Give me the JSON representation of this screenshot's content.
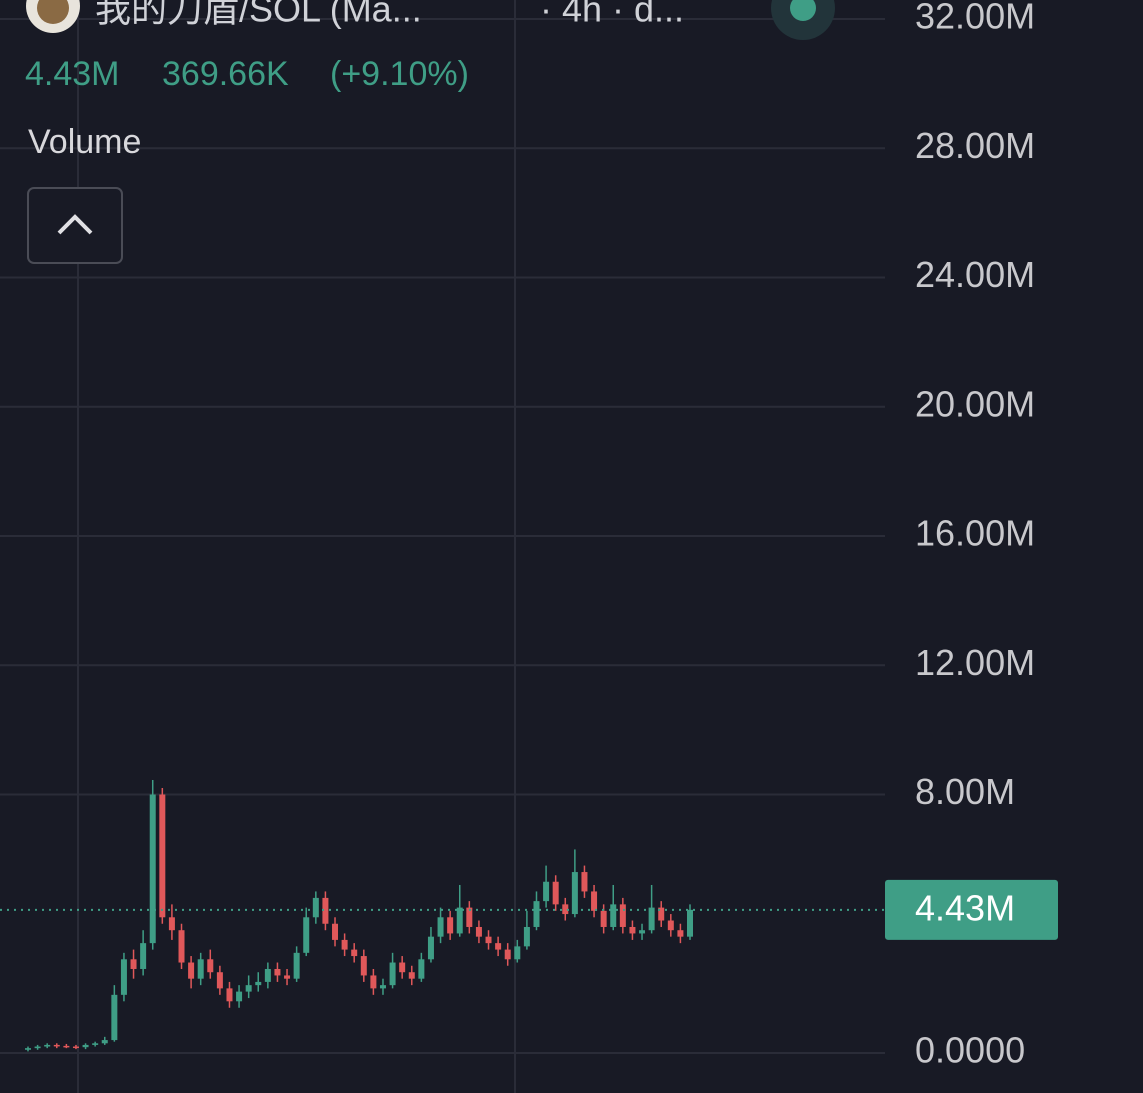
{
  "header": {
    "title": "我的刀盾/SOL (Ma...",
    "interval": "· 4h · d...",
    "price": "4.43M",
    "change": "369.66K",
    "change_pct": "(+9.10%)",
    "indicator": "Volume"
  },
  "chart_data": {
    "type": "candlestick",
    "up_color": "#3f9e86",
    "down_color": "#e0585a",
    "grid": true,
    "ylim": [
      0,
      32
    ],
    "yticks": [
      {
        "value": 0,
        "label": "0.0000"
      },
      {
        "value": 8,
        "label": "8.00M"
      },
      {
        "value": 12,
        "label": "12.00M"
      },
      {
        "value": 16,
        "label": "16.00M"
      },
      {
        "value": 20,
        "label": "20.00M"
      },
      {
        "value": 24,
        "label": "24.00M"
      },
      {
        "value": 28,
        "label": "28.00M"
      },
      {
        "value": 32,
        "label": "32.00M"
      }
    ],
    "last_price": {
      "value": 4.43,
      "label": "4.43M"
    },
    "open": [
      0.1,
      0.15,
      0.2,
      0.25,
      0.22,
      0.2,
      0.18,
      0.25,
      0.3,
      0.4,
      1.8,
      2.9,
      2.6,
      3.4,
      8.0,
      4.2,
      3.8,
      2.8,
      2.3,
      2.9,
      2.5,
      2.0,
      1.6,
      1.9,
      2.1,
      2.2,
      2.6,
      2.4,
      2.3,
      3.1,
      4.2,
      4.8,
      4.0,
      3.5,
      3.2,
      3.0,
      2.4,
      2.0,
      2.1,
      2.8,
      2.5,
      2.3,
      2.9,
      3.6,
      4.2,
      3.7,
      4.5,
      3.9,
      3.6,
      3.4,
      3.2,
      2.9,
      3.3,
      3.9,
      4.7,
      5.3,
      4.6,
      4.3,
      5.6,
      5.0,
      4.4,
      3.9,
      4.6,
      3.9,
      3.7,
      3.8,
      4.5,
      4.1,
      3.8,
      3.6
    ],
    "high": [
      0.2,
      0.25,
      0.3,
      0.3,
      0.28,
      0.25,
      0.3,
      0.35,
      0.5,
      2.1,
      3.1,
      3.2,
      3.8,
      8.45,
      8.2,
      4.6,
      4.0,
      3.0,
      3.1,
      3.2,
      2.7,
      2.2,
      2.1,
      2.4,
      2.5,
      2.8,
      2.8,
      2.6,
      3.3,
      4.5,
      5.0,
      5.0,
      4.2,
      3.7,
      3.4,
      3.2,
      2.6,
      2.3,
      3.1,
      3.0,
      2.7,
      3.1,
      3.9,
      4.5,
      4.4,
      5.2,
      4.7,
      4.1,
      3.8,
      3.6,
      3.4,
      3.5,
      4.4,
      5.0,
      5.8,
      5.5,
      4.8,
      6.3,
      5.8,
      5.2,
      4.6,
      5.2,
      4.8,
      4.1,
      4.0,
      5.2,
      4.7,
      4.3,
      4.0,
      4.6
    ],
    "low": [
      0.05,
      0.1,
      0.15,
      0.15,
      0.15,
      0.12,
      0.12,
      0.2,
      0.25,
      0.35,
      1.6,
      2.3,
      2.4,
      3.2,
      4.0,
      3.5,
      2.6,
      2.0,
      2.1,
      2.3,
      1.8,
      1.4,
      1.4,
      1.7,
      1.9,
      2.0,
      2.2,
      2.1,
      2.2,
      3.0,
      4.0,
      3.8,
      3.3,
      3.0,
      2.8,
      2.2,
      1.8,
      1.8,
      2.0,
      2.3,
      2.1,
      2.2,
      2.8,
      3.4,
      3.5,
      3.6,
      3.7,
      3.4,
      3.2,
      3.0,
      2.7,
      2.8,
      3.2,
      3.8,
      4.5,
      4.4,
      4.1,
      4.2,
      4.8,
      4.2,
      3.7,
      3.8,
      3.7,
      3.5,
      3.5,
      3.7,
      3.9,
      3.6,
      3.4,
      3.5
    ],
    "close": [
      0.15,
      0.2,
      0.25,
      0.22,
      0.2,
      0.18,
      0.25,
      0.3,
      0.4,
      1.8,
      2.9,
      2.6,
      3.4,
      8.0,
      4.2,
      3.8,
      2.8,
      2.3,
      2.9,
      2.5,
      2.0,
      1.6,
      1.9,
      2.1,
      2.2,
      2.6,
      2.4,
      2.3,
      3.1,
      4.2,
      4.8,
      4.0,
      3.5,
      3.2,
      3.0,
      2.4,
      2.0,
      2.1,
      2.8,
      2.5,
      2.3,
      2.9,
      3.6,
      4.2,
      3.7,
      4.5,
      3.9,
      3.6,
      3.4,
      3.2,
      2.9,
      3.3,
      3.9,
      4.7,
      5.3,
      4.6,
      4.3,
      5.6,
      5.0,
      4.4,
      3.9,
      4.6,
      3.9,
      3.7,
      3.8,
      4.5,
      4.1,
      3.8,
      3.6,
      4.43
    ]
  }
}
